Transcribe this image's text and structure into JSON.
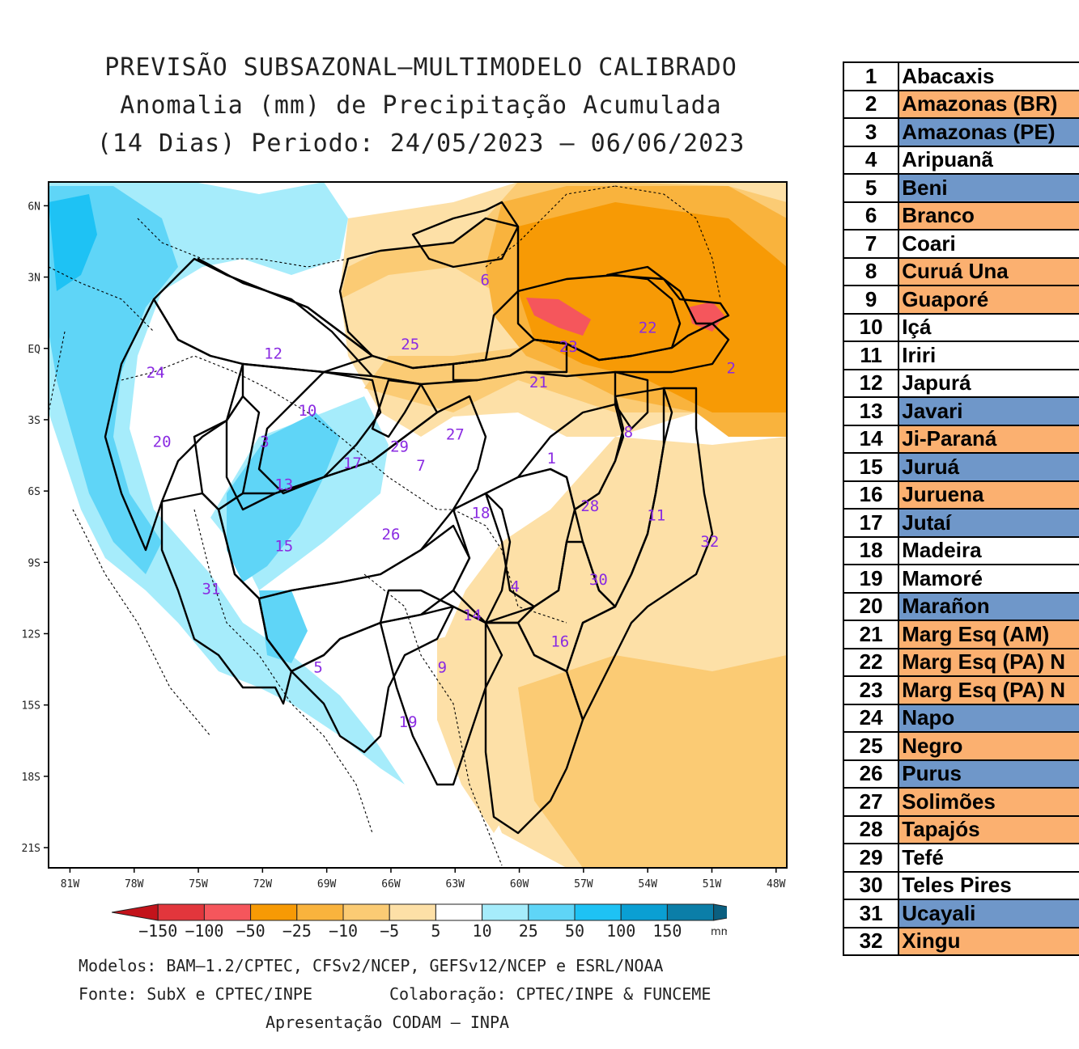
{
  "title": {
    "line1": "PREVISÃO SUBSAZONAL—MULTIMODELO CALIBRADO",
    "line2": "Anomalia (mm) de Precipitação Acumulada",
    "line3": "(14 Dias) Periodo: 24/05/2023 — 06/06/2023"
  },
  "map": {
    "lat_labels": [
      "6N",
      "3N",
      "EQ",
      "3S",
      "6S",
      "9S",
      "12S",
      "15S",
      "18S",
      "21S"
    ],
    "lon_labels": [
      "81W",
      "78W",
      "75W",
      "72W",
      "69W",
      "66W",
      "63W",
      "60W",
      "57W",
      "54W",
      "51W",
      "48W"
    ],
    "basin_labels": [
      {
        "id": "1",
        "lon": -58.5,
        "lat": -4.6
      },
      {
        "id": "2",
        "lon": -50.1,
        "lat": -0.8
      },
      {
        "id": "3",
        "lon": -71.9,
        "lat": -3.9
      },
      {
        "id": "4",
        "lon": -60.2,
        "lat": -10.0
      },
      {
        "id": "5",
        "lon": -69.4,
        "lat": -13.4
      },
      {
        "id": "6",
        "lon": -61.6,
        "lat": 2.9
      },
      {
        "id": "7",
        "lon": -64.6,
        "lat": -4.9
      },
      {
        "id": "8",
        "lon": -54.9,
        "lat": -3.5
      },
      {
        "id": "9",
        "lon": -63.6,
        "lat": -13.4
      },
      {
        "id": "10",
        "lon": -69.9,
        "lat": -2.6
      },
      {
        "id": "11",
        "lon": -53.6,
        "lat": -7.0
      },
      {
        "id": "12",
        "lon": -71.5,
        "lat": -0.2
      },
      {
        "id": "13",
        "lon": -71.0,
        "lat": -5.7
      },
      {
        "id": "14",
        "lon": -62.2,
        "lat": -11.2
      },
      {
        "id": "15",
        "lon": -71.0,
        "lat": -8.3
      },
      {
        "id": "16",
        "lon": -58.1,
        "lat": -12.3
      },
      {
        "id": "17",
        "lon": -67.8,
        "lat": -4.8
      },
      {
        "id": "18",
        "lon": -61.8,
        "lat": -6.9
      },
      {
        "id": "19",
        "lon": -65.2,
        "lat": -15.7
      },
      {
        "id": "20",
        "lon": -76.7,
        "lat": -3.9
      },
      {
        "id": "21",
        "lon": -59.1,
        "lat": -1.4
      },
      {
        "id": "22",
        "lon": -54.0,
        "lat": 0.9
      },
      {
        "id": "23",
        "lon": -57.7,
        "lat": 0.1
      },
      {
        "id": "24",
        "lon": -77.0,
        "lat": -1.0
      },
      {
        "id": "25",
        "lon": -65.1,
        "lat": 0.2
      },
      {
        "id": "26",
        "lon": -66.0,
        "lat": -7.8
      },
      {
        "id": "27",
        "lon": -63.0,
        "lat": -3.6
      },
      {
        "id": "28",
        "lon": -56.7,
        "lat": -6.6
      },
      {
        "id": "29",
        "lon": -65.6,
        "lat": -4.1
      },
      {
        "id": "30",
        "lon": -56.3,
        "lat": -9.7
      },
      {
        "id": "31",
        "lon": -74.4,
        "lat": -10.1
      },
      {
        "id": "32",
        "lon": -51.1,
        "lat": -8.1
      }
    ]
  },
  "colorbar": {
    "labels": [
      "−150",
      "−100",
      "−50",
      "−25",
      "−10",
      "−5",
      "5",
      "10",
      "25",
      "50",
      "100",
      "150"
    ],
    "colors": [
      "#c3131b",
      "#e2363c",
      "#f5565c",
      "#f79a05",
      "#f9b33d",
      "#fbcb74",
      "#fde0a7",
      "#ffffff",
      "#a6ecfb",
      "#5fd5f7",
      "#1ec2f4",
      "#0a9fd3",
      "#0b7ea8",
      "#0b5f80"
    ],
    "unit": "mm"
  },
  "footer": {
    "line1": "Modelos: BAM—1.2/CPTEC, CFSv2/NCEP, GEFSv12/NCEP e ESRL/NOAA",
    "line2a": "Fonte: SubX e CPTEC/INPE",
    "line2b": "Colaboração: CPTEC/INPE & FUNCEME",
    "line3": "Apresentação CODAM — INPA"
  },
  "table": [
    {
      "num": "1",
      "name": "Abacaxis",
      "color": "white"
    },
    {
      "num": "2",
      "name": "Amazonas (BR)",
      "color": "orange"
    },
    {
      "num": "3",
      "name": "Amazonas (PE)",
      "color": "blue"
    },
    {
      "num": "4",
      "name": "Aripuanã",
      "color": "white"
    },
    {
      "num": "5",
      "name": "Beni",
      "color": "blue"
    },
    {
      "num": "6",
      "name": "Branco",
      "color": "orange"
    },
    {
      "num": "7",
      "name": "Coari",
      "color": "white"
    },
    {
      "num": "8",
      "name": "Curuá Una",
      "color": "orange"
    },
    {
      "num": "9",
      "name": "Guaporé",
      "color": "orange"
    },
    {
      "num": "10",
      "name": "Içá",
      "color": "white"
    },
    {
      "num": "11",
      "name": "Iriri",
      "color": "white"
    },
    {
      "num": "12",
      "name": "Japurá",
      "color": "white"
    },
    {
      "num": "13",
      "name": "Javari",
      "color": "blue"
    },
    {
      "num": "14",
      "name": "Ji-Paraná",
      "color": "orange"
    },
    {
      "num": "15",
      "name": "Juruá",
      "color": "blue"
    },
    {
      "num": "16",
      "name": "Juruena",
      "color": "orange"
    },
    {
      "num": "17",
      "name": "Jutaí",
      "color": "blue"
    },
    {
      "num": "18",
      "name": "Madeira",
      "color": "white"
    },
    {
      "num": "19",
      "name": "Mamoré",
      "color": "white"
    },
    {
      "num": "20",
      "name": "Marañon",
      "color": "blue"
    },
    {
      "num": "21",
      "name": "Marg Esq (AM)",
      "color": "orange"
    },
    {
      "num": "22",
      "name": "Marg Esq (PA) N",
      "color": "orange"
    },
    {
      "num": "23",
      "name": "Marg Esq (PA) N",
      "color": "orange"
    },
    {
      "num": "24",
      "name": "Napo",
      "color": "blue"
    },
    {
      "num": "25",
      "name": "Negro",
      "color": "orange"
    },
    {
      "num": "26",
      "name": "Purus",
      "color": "blue"
    },
    {
      "num": "27",
      "name": "Solimões",
      "color": "orange"
    },
    {
      "num": "28",
      "name": "Tapajós",
      "color": "orange"
    },
    {
      "num": "29",
      "name": "Tefé",
      "color": "white"
    },
    {
      "num": "30",
      "name": "Teles Pires",
      "color": "white"
    },
    {
      "num": "31",
      "name": "Ucayali",
      "color": "blue"
    },
    {
      "num": "32",
      "name": "Xingu",
      "color": "orange"
    }
  ]
}
